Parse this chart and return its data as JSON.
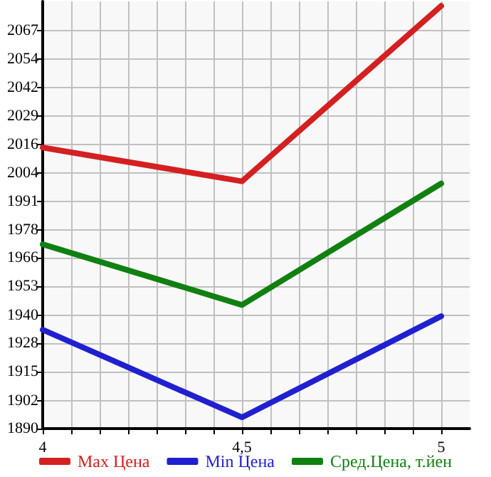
{
  "chart_data": {
    "type": "line",
    "x": [
      4,
      4.5,
      5
    ],
    "series": [
      {
        "name": "Max Цена",
        "color": "#d42020",
        "values": [
          2015,
          2000,
          2078
        ]
      },
      {
        "name": "Min Цена",
        "color": "#2020d0",
        "values": [
          1934,
          1895,
          1940
        ]
      },
      {
        "name": "Сред.Цена, т.йен",
        "color": "#108010",
        "values": [
          1972,
          1945,
          1999
        ]
      }
    ],
    "xlim": [
      4,
      5.0714
    ],
    "xticks": [
      {
        "value": 4,
        "label": "4"
      },
      {
        "value": 4.0714,
        "label": null
      },
      {
        "value": 4.1429,
        "label": null
      },
      {
        "value": 4.2143,
        "label": null
      },
      {
        "value": 4.2857,
        "label": null
      },
      {
        "value": 4.3571,
        "label": null
      },
      {
        "value": 4.4286,
        "label": null
      },
      {
        "value": 4.5,
        "label": "4,5"
      },
      {
        "value": 4.5714,
        "label": null
      },
      {
        "value": 4.6429,
        "label": null
      },
      {
        "value": 4.7143,
        "label": null
      },
      {
        "value": 4.7857,
        "label": null
      },
      {
        "value": 4.8571,
        "label": null
      },
      {
        "value": 4.9286,
        "label": null
      },
      {
        "value": 5,
        "label": "5"
      }
    ],
    "ylim": [
      1890,
      2080
    ],
    "yticks": [
      1890,
      {
        "value": 1902.4,
        "label": "1902"
      },
      {
        "value": 1915.29,
        "label": "1915"
      },
      {
        "value": 1927.93,
        "label": "1928"
      },
      {
        "value": 1940.4,
        "label": "1940"
      },
      {
        "value": 1953.21,
        "label": "1953"
      },
      {
        "value": 1965.86,
        "label": "1966"
      },
      {
        "value": 1978.5,
        "label": "1978"
      },
      {
        "value": 1991.14,
        "label": "1991"
      },
      {
        "value": 2003.79,
        "label": "2004"
      },
      {
        "value": 2016.43,
        "label": "2016"
      },
      {
        "value": 2029.07,
        "label": "2029"
      },
      {
        "value": 2041.71,
        "label": "2042"
      },
      {
        "value": 2054.36,
        "label": "2054"
      },
      2067
    ],
    "grid": true,
    "legend": "bottom",
    "marker": "none",
    "line_style": "solid"
  }
}
